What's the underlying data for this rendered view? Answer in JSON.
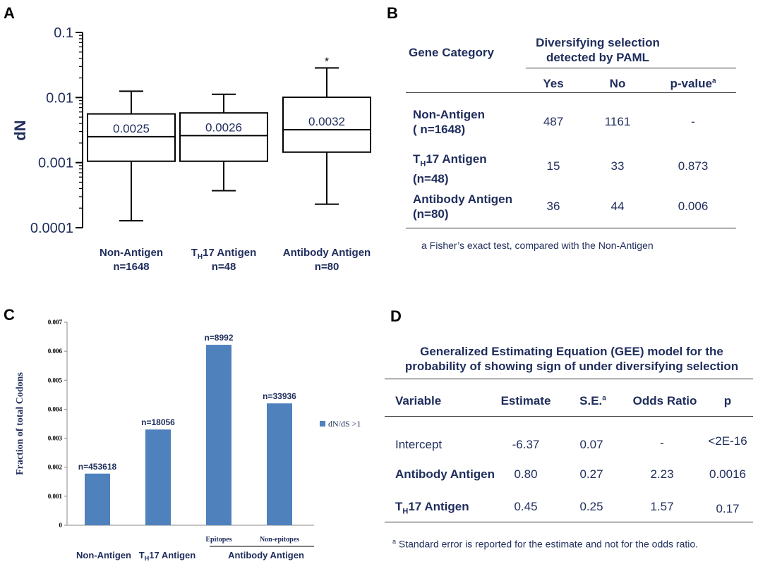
{
  "panels": {
    "a": "A",
    "b": "B",
    "c": "C",
    "d": "D"
  },
  "chart_data": [
    {
      "type": "box",
      "ylabel": "dN",
      "yscale": "log",
      "ylim": [
        0.0001,
        0.1
      ],
      "yticks": [
        {
          "v": 0.1,
          "label": "0.1"
        },
        {
          "v": 0.01,
          "label": "0.01"
        },
        {
          "v": 0.001,
          "label": "0.001"
        },
        {
          "v": 0.0001,
          "label": "0.0001"
        }
      ],
      "categories": [
        {
          "line1_pre": "Non-Antigen",
          "sub": "",
          "line1_post": "",
          "line2": "n=1648"
        },
        {
          "line1_pre": "T",
          "sub": "H",
          "line1_post": "17  Antigen",
          "line2": "n=48"
        },
        {
          "line1_pre": "Antibody Antigen",
          "sub": "",
          "line1_post": "",
          "line2": "n=80"
        }
      ],
      "boxes": [
        {
          "min": 0.000128,
          "q1": 0.00105,
          "median": 0.0025,
          "q3": 0.0056,
          "max": 0.0125,
          "label": "0.0025",
          "annotation": ""
        },
        {
          "min": 0.00037,
          "q1": 0.00105,
          "median": 0.0026,
          "q3": 0.0058,
          "max": 0.0112,
          "label": "0.0026",
          "annotation": ""
        },
        {
          "min": 0.00023,
          "q1": 0.00145,
          "median": 0.0032,
          "q3": 0.0101,
          "max": 0.0285,
          "label": "0.0032",
          "annotation": "*"
        }
      ]
    },
    {
      "type": "bar",
      "ylabel": "Fraction of total Codons",
      "ylim": [
        0,
        0.007
      ],
      "yticks": [
        "0",
        "0.001",
        "0.002",
        "0.003",
        "0.004",
        "0.005",
        "0.006",
        "0.007"
      ],
      "series": [
        {
          "name": "dN/dS >1",
          "values": [
            0.00178,
            0.0033,
            0.00622,
            0.0042
          ]
        }
      ],
      "bar_labels": [
        "n=453618",
        "n=18056",
        "n=8992",
        "n=33936"
      ],
      "sub_labels": [
        "",
        "",
        "Epitopes",
        "Non-epitopes"
      ],
      "group_labels": [
        {
          "pre": "Non-Antigen",
          "sub": "",
          "post": ""
        },
        {
          "pre": "T",
          "sub": "H",
          "post": "17 Antigen"
        },
        {
          "pre": "Antibody Antigen",
          "sub": "",
          "post": ""
        }
      ],
      "color": "#4f81bd"
    },
    {
      "type": "table",
      "title": "Diversifying selection detected by PAML",
      "title_line1": "Diversifying selection",
      "title_line2": "detected by PAML",
      "category_header": "Gene Category",
      "columns": [
        "Yes",
        "No",
        "p-value"
      ],
      "pvalue_sup": "a",
      "rows": [
        {
          "pre": "Non-Antigen",
          "sub": "",
          "post": "",
          "line2": "( n=1648)",
          "yes": "487",
          "no": "1161",
          "p": "-"
        },
        {
          "pre": "T",
          "sub": "H",
          "post": "17  Antigen",
          "line2": "(n=48)",
          "yes": "15",
          "no": "33",
          "p": "0.873"
        },
        {
          "pre": "Antibody Antigen",
          "sub": "",
          "post": "",
          "line2": "(n=80)",
          "yes": "36",
          "no": "44",
          "p": "0.006"
        }
      ],
      "footnote": "a Fisher’s exact test, compared with the Non-Antigen"
    },
    {
      "type": "table",
      "title_line1": "Generalized Estimating Equation (GEE) model for the",
      "title_line2": "probability of showing sign of under diversifying selection",
      "columns": [
        "Variable",
        "Estimate",
        "S.E.",
        "Odds Ratio",
        "p"
      ],
      "se_sup": "a",
      "rows": [
        {
          "pre": "Intercept",
          "sub": "",
          "post": "",
          "bold": false,
          "estimate": "-6.37",
          "se": "0.07",
          "or": "-",
          "p": "<2E-16"
        },
        {
          "pre": "Antibody Antigen",
          "sub": "",
          "post": "",
          "bold": true,
          "estimate": "0.80",
          "se": "0.27",
          "or": "2.23",
          "p": "0.0016"
        },
        {
          "pre": "T",
          "sub": "H",
          "post": "17 Antigen",
          "bold": true,
          "estimate": "0.45",
          "se": "0.25",
          "or": "1.57",
          "p": "0.17"
        }
      ],
      "footnote_sup": "a",
      "footnote": " Standard error is reported for the estimate and not for the odds ratio."
    }
  ]
}
